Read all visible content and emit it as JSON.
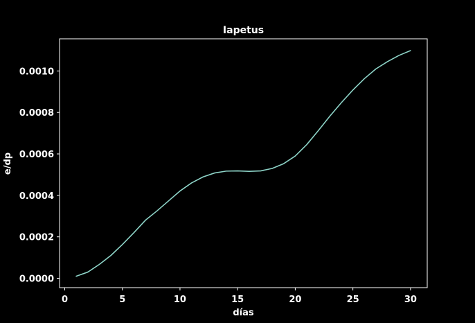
{
  "chart_data": {
    "type": "line",
    "title": "Iapetus",
    "xlabel": "días",
    "ylabel": "e/dp",
    "xlim": [
      -0.45,
      31.45
    ],
    "ylim": [
      -4.5e-05,
      0.001155
    ],
    "xticks": [
      0,
      5,
      10,
      15,
      20,
      25,
      30
    ],
    "xtick_labels": [
      "0",
      "5",
      "10",
      "15",
      "20",
      "25",
      "30"
    ],
    "yticks": [
      0.0,
      0.0002,
      0.0004,
      0.0006,
      0.0008,
      0.001
    ],
    "ytick_labels": [
      "0.0000",
      "0.0002",
      "0.0004",
      "0.0006",
      "0.0008",
      "0.0010"
    ],
    "grid": false,
    "legend": "none",
    "series": [
      {
        "color": "#8dd3c7",
        "x": [
          1,
          2,
          3,
          4,
          5,
          6,
          7,
          8,
          9,
          10,
          11,
          12,
          13,
          14,
          15,
          16,
          17,
          18,
          19,
          20,
          21,
          22,
          23,
          24,
          25,
          26,
          27,
          28,
          29,
          30
        ],
        "y": [
          1e-05,
          3e-05,
          6.7e-05,
          0.00011,
          0.000163,
          0.00022,
          0.00028,
          0.000325,
          0.000373,
          0.000421,
          0.00046,
          0.000489,
          0.000508,
          0.000517,
          0.000518,
          0.000516,
          0.000518,
          0.00053,
          0.000553,
          0.00059,
          0.000645,
          0.000712,
          0.000782,
          0.000847,
          0.000908,
          0.000963,
          0.00101,
          0.001045,
          0.001075,
          0.001098
        ]
      }
    ]
  },
  "colors": {
    "background": "#000000",
    "axes": "#ffffff",
    "text": "#ffffff",
    "line": "#8dd3c7"
  }
}
